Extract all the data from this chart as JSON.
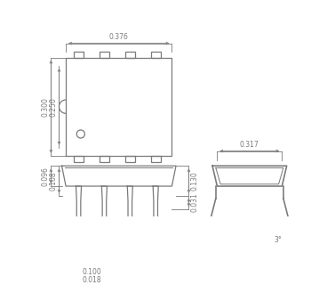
{
  "bg_color": "#ffffff",
  "line_color": "#7a7a7a",
  "dim_color": "#7a7a7a",
  "fig_width": 3.77,
  "fig_height": 3.2,
  "dims": {
    "top_width": "0.376",
    "top_height_outer": "0.300",
    "top_height_inner": "0.250",
    "side_width": "0.317",
    "front_height_upper": "0.130",
    "front_height_lower": "0.031",
    "front_pin_spacing": "0.100",
    "front_pin_width": "0.018",
    "front_body_height": "0.096",
    "front_total_height": "0.108",
    "angle": "3°"
  }
}
